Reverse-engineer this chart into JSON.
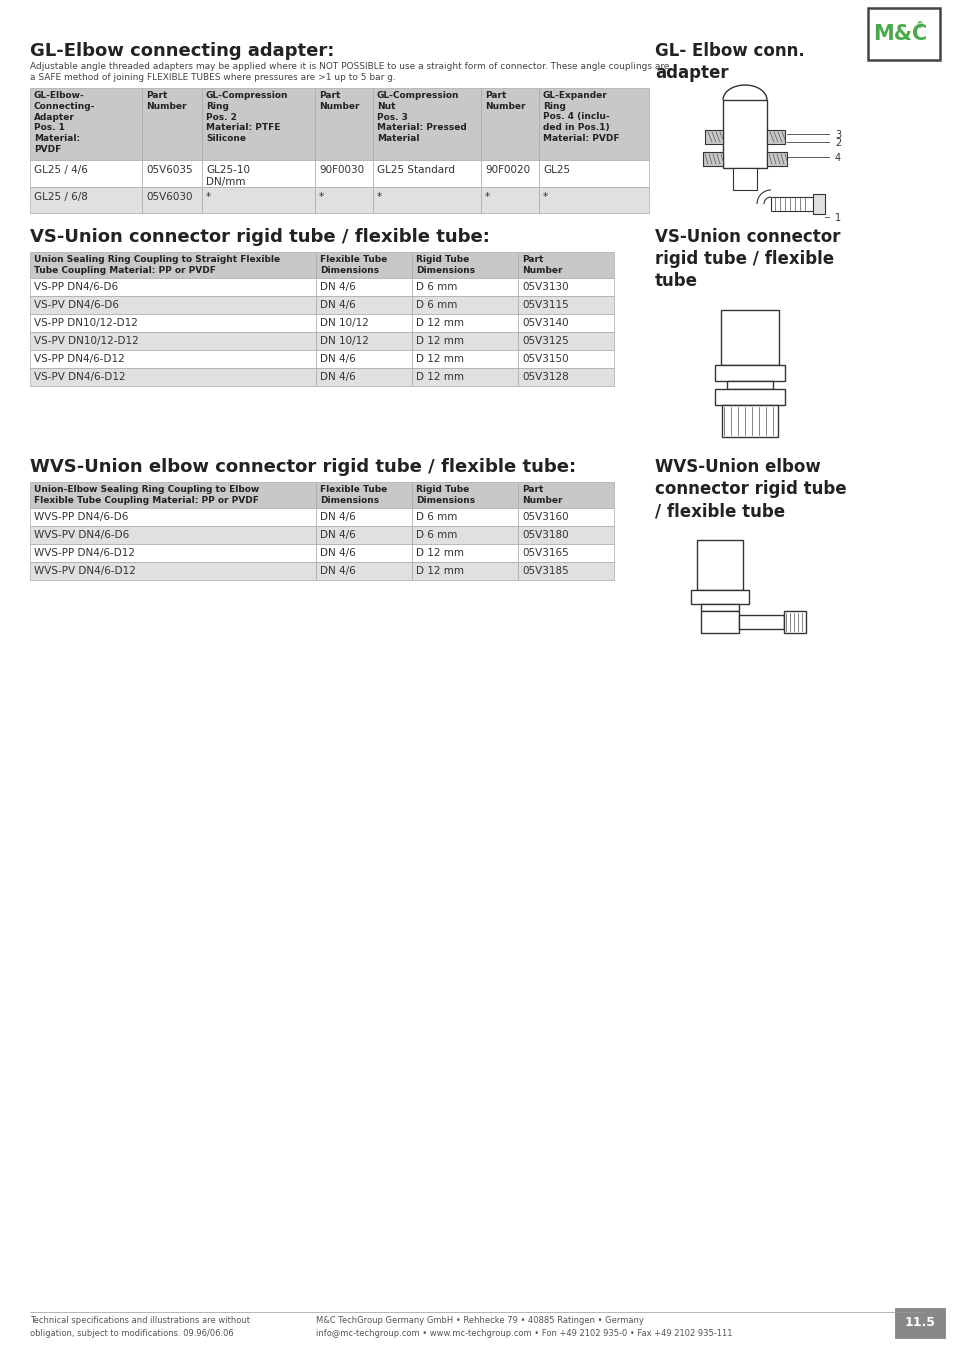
{
  "bg_color": "#ffffff",
  "header_bg": "#c8c8c8",
  "row_alt_bg": "#e0e0e0",
  "row_white_bg": "#ffffff",
  "logo_green": "#4aaa4a",
  "section1_title": "GL-Elbow connecting adapter:",
  "section1_subtitle": "Adjustable angle threaded adapters may be applied where it is NOT POSSIBLE to use a straight form of connector. These angle couplings are\na SAFE method of joining FLEXIBLE TUBES where pressures are >1 up to 5 bar g.",
  "section1_right_title": "GL- Elbow conn.\nadapter",
  "section1_table_headers": [
    "GL-Elbow-\nConnecting-\nAdapter\nPos. 1\nMaterial:\nPVDF",
    "Part\nNumber",
    "GL-Compression\nRing\nPos. 2\nMaterial: PTFE\nSilicone",
    "Part\nNumber",
    "GL-Compression\nNut\nPos. 3\nMaterial: Pressed\nMaterial",
    "Part\nNumber",
    "GL-Expander\nRing\nPos. 4 (inclu-\nded in Pos.1)\nMaterial: PVDF"
  ],
  "section1_rows": [
    [
      "GL25 / 4/6",
      "05V6035",
      "GL25-10\nDN/mm",
      "90F0030",
      "GL25 Standard",
      "90F0020",
      "GL25"
    ],
    [
      "GL25 / 6/8",
      "05V6030",
      "*",
      "*",
      "*",
      "*",
      "*"
    ]
  ],
  "section2_title": "VS-Union connector rigid tube / flexible tube:",
  "section2_right_title": "VS-Union connector\nrigid tube / flexible\ntube",
  "section2_table_headers": [
    "Union Sealing Ring Coupling to Straight Flexible\nTube Coupling Material: PP or PVDF",
    "Flexible Tube\nDimensions",
    "Rigid Tube\nDimensions",
    "Part\nNumber"
  ],
  "section2_rows": [
    [
      "VS-PP DN4/6-D6",
      "DN 4/6",
      "D 6 mm",
      "05V3130"
    ],
    [
      "VS-PV DN4/6-D6",
      "DN 4/6",
      "D 6 mm",
      "05V3115"
    ],
    [
      "VS-PP DN10/12-D12",
      "DN 10/12",
      "D 12 mm",
      "05V3140"
    ],
    [
      "VS-PV DN10/12-D12",
      "DN 10/12",
      "D 12 mm",
      "05V3125"
    ],
    [
      "VS-PP DN4/6-D12",
      "DN 4/6",
      "D 12 mm",
      "05V3150"
    ],
    [
      "VS-PV DN4/6-D12",
      "DN 4/6",
      "D 12 mm",
      "05V3128"
    ]
  ],
  "section3_title": "WVS-Union elbow connector rigid tube / flexible tube:",
  "section3_right_title": "WVS-Union elbow\nconnector rigid tube\n/ flexible tube",
  "section3_table_headers": [
    "Union-Elbow Sealing Ring Coupling to Elbow\nFlexible Tube Coupling Material: PP or PVDF",
    "Flexible Tube\nDimensions",
    "Rigid Tube\nDimensions",
    "Part\nNumber"
  ],
  "section3_rows": [
    [
      "WVS-PP DN4/6-D6",
      "DN 4/6",
      "D 6 mm",
      "05V3160"
    ],
    [
      "WVS-PV DN4/6-D6",
      "DN 4/6",
      "D 6 mm",
      "05V3180"
    ],
    [
      "WVS-PP DN4/6-D12",
      "DN 4/6",
      "D 12 mm",
      "05V3165"
    ],
    [
      "WVS-PV DN4/6-D12",
      "DN 4/6",
      "D 12 mm",
      "05V3185"
    ]
  ],
  "footer_left": "Technical specifications and illustrations are without\nobligation, subject to modifications. 09.96/06.06",
  "footer_center": "M&C TechGroup Germany GmbH • Rehhecke 79 • 40885 Ratingen • Germany\ninfo@mc-techgroup.com • www.mc-techgroup.com • Fon +49 2102 935-0 • Fax +49 2102 935-111",
  "footer_page": "11.5"
}
